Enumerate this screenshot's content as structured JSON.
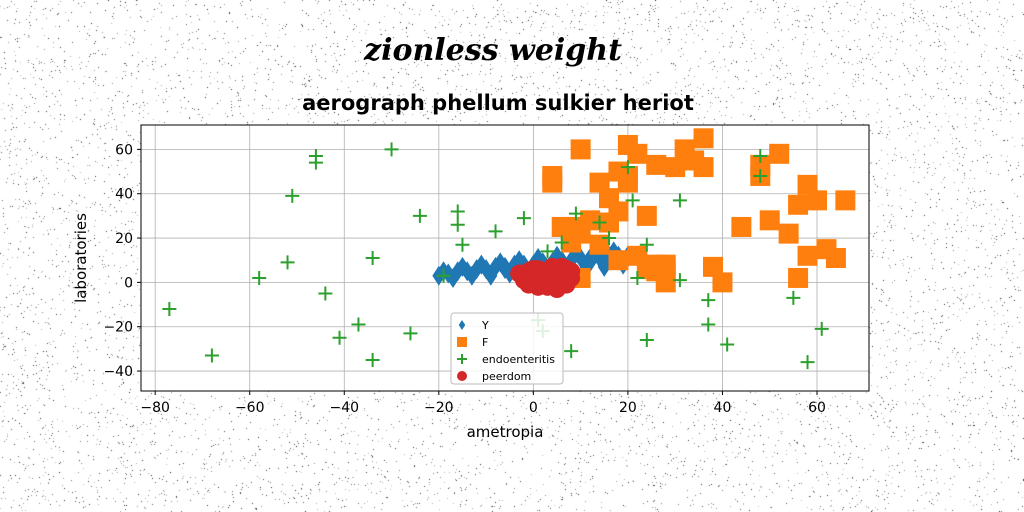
{
  "chart_data": {
    "type": "scatter",
    "suptitle": "zionless weight",
    "title": "aerograph phellum sulkier heriot",
    "xlabel": "ametropia",
    "ylabel": "laboratories",
    "xlim": [
      -83,
      71
    ],
    "ylim": [
      -49,
      71
    ],
    "xticks": [
      -80,
      -60,
      -40,
      -20,
      0,
      20,
      40,
      60
    ],
    "yticks": [
      -40,
      -20,
      0,
      20,
      40,
      60
    ],
    "grid": true,
    "legend_position": "lower-center",
    "series": [
      {
        "name": "Y",
        "marker": "diamond",
        "color": "#1f77b4",
        "x": [
          -20,
          -18,
          -16,
          -14,
          -12,
          -10,
          -8,
          -6,
          -4,
          -2,
          0,
          2,
          4,
          6,
          8,
          10,
          12,
          14,
          16,
          18,
          20,
          -17,
          -13,
          -9,
          -5,
          -1,
          3,
          7,
          11,
          15,
          19,
          -15,
          -11,
          -7,
          -3,
          1,
          5,
          9,
          13,
          17,
          -19,
          -6,
          6,
          12
        ],
        "y": [
          3,
          4,
          5,
          5,
          6,
          6,
          7,
          7,
          8,
          8,
          8,
          9,
          9,
          10,
          10,
          11,
          11,
          11,
          12,
          12,
          12,
          2,
          3,
          3,
          4,
          4,
          5,
          5,
          6,
          7,
          8,
          7,
          8,
          9,
          10,
          11,
          12,
          13,
          13,
          14,
          5,
          6,
          8,
          9
        ]
      },
      {
        "name": "F",
        "marker": "square",
        "color": "#ff7f0e",
        "x": [
          4,
          4,
          10,
          12,
          14,
          16,
          18,
          18,
          20,
          20,
          20,
          22,
          24,
          26,
          28,
          28,
          30,
          32,
          34,
          36,
          36,
          38,
          40,
          44,
          48,
          48,
          50,
          52,
          54,
          56,
          56,
          58,
          58,
          60,
          62,
          64,
          66,
          8,
          10,
          14,
          16,
          18,
          22,
          24,
          26,
          6,
          8,
          10,
          26,
          28
        ],
        "y": [
          48,
          45,
          60,
          28,
          45,
          38,
          50,
          32,
          62,
          48,
          45,
          58,
          30,
          53,
          0,
          5,
          52,
          60,
          55,
          65,
          52,
          7,
          0,
          25,
          53,
          48,
          28,
          58,
          22,
          2,
          35,
          12,
          44,
          37,
          15,
          11,
          37,
          25,
          22,
          17,
          27,
          10,
          12,
          6,
          8,
          25,
          18,
          2,
          5,
          8
        ]
      },
      {
        "name": "endoenteritis",
        "marker": "plus",
        "color": "#2ca02c",
        "x": [
          -77,
          -68,
          -58,
          -52,
          -51,
          -46,
          -46,
          -44,
          -41,
          -37,
          -34,
          -34,
          -30,
          -26,
          -24,
          -19,
          -16,
          -16,
          -15,
          -8,
          -2,
          1,
          2,
          3,
          4,
          6,
          8,
          9,
          14,
          16,
          20,
          21,
          22,
          24,
          24,
          31,
          31,
          37,
          37,
          41,
          48,
          48,
          55,
          58,
          61
        ],
        "y": [
          -12,
          -33,
          2,
          9,
          39,
          54,
          57,
          -5,
          -25,
          -19,
          11,
          -35,
          60,
          -23,
          30,
          3,
          32,
          26,
          17,
          23,
          29,
          -17,
          -22,
          14,
          0,
          18,
          -31,
          31,
          27,
          20,
          52,
          37,
          2,
          -26,
          17,
          37,
          1,
          -8,
          -19,
          -28,
          57,
          48,
          -7,
          -36,
          -21
        ]
      },
      {
        "name": "peerdom",
        "marker": "circle",
        "color": "#d62728",
        "x": [
          -3,
          -1,
          0,
          1,
          2,
          3,
          4,
          5,
          6,
          7,
          8,
          -2,
          0,
          2,
          4,
          6,
          8,
          -1,
          1,
          3,
          5,
          7,
          0,
          2,
          4,
          6,
          1,
          3,
          5
        ],
        "y": [
          4,
          5,
          6,
          6,
          5,
          4,
          6,
          5,
          4,
          6,
          5,
          1,
          2,
          3,
          2,
          1,
          2,
          -1,
          0,
          -1,
          0,
          -1,
          3,
          4,
          7,
          7,
          -2,
          -2,
          -3
        ]
      }
    ]
  }
}
